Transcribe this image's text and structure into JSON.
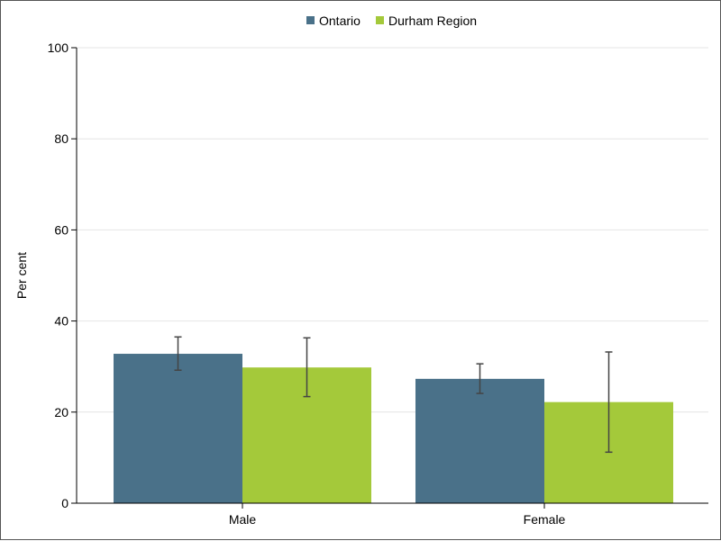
{
  "chart_data": {
    "type": "bar",
    "categories": [
      "Male",
      "Female"
    ],
    "series": [
      {
        "name": "Ontario",
        "color": "#4a7189",
        "values": [
          32.8,
          27.3
        ],
        "ci_low": [
          29.2,
          24.1
        ],
        "ci_high": [
          36.5,
          30.6
        ]
      },
      {
        "name": "Durham Region",
        "color": "#a4c93a",
        "values": [
          29.8,
          22.2
        ],
        "ci_low": [
          23.4,
          11.2
        ],
        "ci_high": [
          36.3,
          33.2
        ]
      }
    ],
    "ylabel": "Per cent",
    "ylim": [
      0,
      100
    ],
    "yticks": [
      "0",
      "20",
      "40",
      "60",
      "80",
      "100"
    ],
    "grid": true,
    "legend_position": "top-center"
  }
}
